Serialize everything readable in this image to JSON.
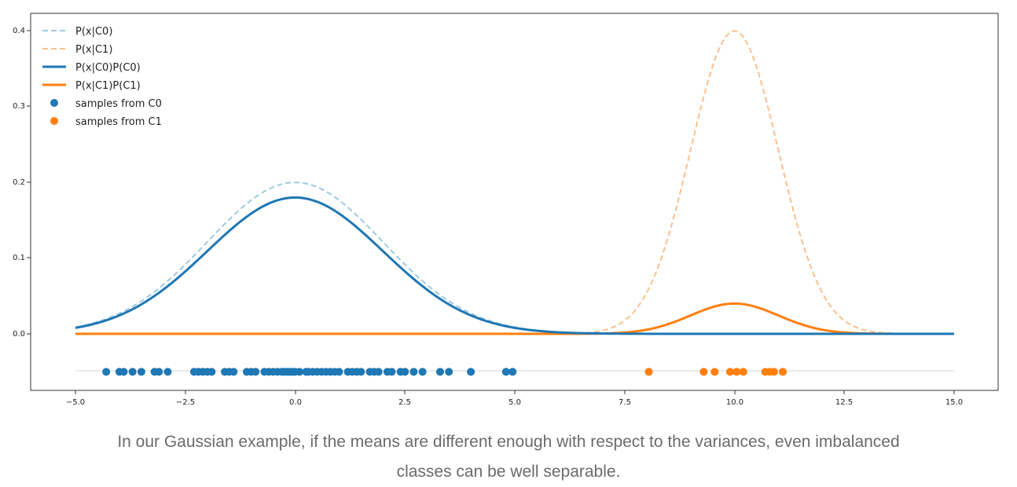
{
  "chart_data": {
    "type": "line",
    "title": "",
    "xlabel": "",
    "ylabel": "",
    "xlim": [
      -5.0,
      15.0
    ],
    "ylim": [
      -0.075,
      0.42
    ],
    "grid": false,
    "legend_position": "top-left",
    "x_ticks": [
      "−5.0",
      "−2.5",
      "0.0",
      "2.5",
      "5.0",
      "7.5",
      "10.0",
      "12.5",
      "15.0"
    ],
    "y_ticks": [
      "0.0",
      "0.1",
      "0.2",
      "0.3",
      "0.4"
    ],
    "distributions": {
      "C0": {
        "mean": 0.0,
        "std": 2.0,
        "prior": 0.9
      },
      "C1": {
        "mean": 10.0,
        "std": 1.0,
        "prior": 0.1
      }
    },
    "samples_baseline_y": -0.05,
    "series": [
      {
        "name": "P(x|C0)",
        "kind": "line",
        "style": "dashed",
        "color": "#9ecae1",
        "curve": "pdf",
        "class": "C0"
      },
      {
        "name": "P(x|C1)",
        "kind": "line",
        "style": "dashed",
        "color": "#fdbf8a",
        "curve": "pdf",
        "class": "C1"
      },
      {
        "name": "P(x|C0)P(C0)",
        "kind": "line",
        "style": "solid",
        "color": "#1f77b4",
        "curve": "weighted",
        "class": "C0"
      },
      {
        "name": "P(x|C1)P(C1)",
        "kind": "line",
        "style": "solid",
        "color": "#ff7f0e",
        "curve": "weighted",
        "class": "C1"
      },
      {
        "name": "samples from C0",
        "kind": "scatter",
        "color": "#1f77b4",
        "x": [
          -4.3,
          -4.0,
          -3.9,
          -3.7,
          -3.5,
          -3.2,
          -3.1,
          -2.9,
          -2.3,
          -2.2,
          -2.1,
          -2.0,
          -1.9,
          -1.6,
          -1.5,
          -1.4,
          -1.1,
          -1.0,
          -0.9,
          -0.7,
          -0.6,
          -0.5,
          -0.4,
          -0.3,
          -0.25,
          -0.2,
          -0.15,
          -0.1,
          -0.05,
          0.0,
          0.1,
          0.25,
          0.3,
          0.4,
          0.5,
          0.6,
          0.7,
          0.8,
          0.9,
          1.0,
          1.2,
          1.3,
          1.4,
          1.5,
          1.7,
          1.8,
          1.9,
          2.1,
          2.2,
          2.4,
          2.5,
          2.7,
          2.9,
          3.3,
          3.5,
          4.0,
          4.8,
          4.95
        ]
      },
      {
        "name": "samples from C1",
        "kind": "scatter",
        "color": "#ff7f0e",
        "x": [
          8.05,
          9.3,
          9.55,
          9.9,
          10.05,
          10.2,
          10.7,
          10.8,
          10.9,
          11.1
        ]
      }
    ]
  },
  "caption": {
    "line1": "In our Gaussian example, if the means are different enough with respect to the variances, even imbalanced",
    "line2": "classes can be well separable."
  }
}
